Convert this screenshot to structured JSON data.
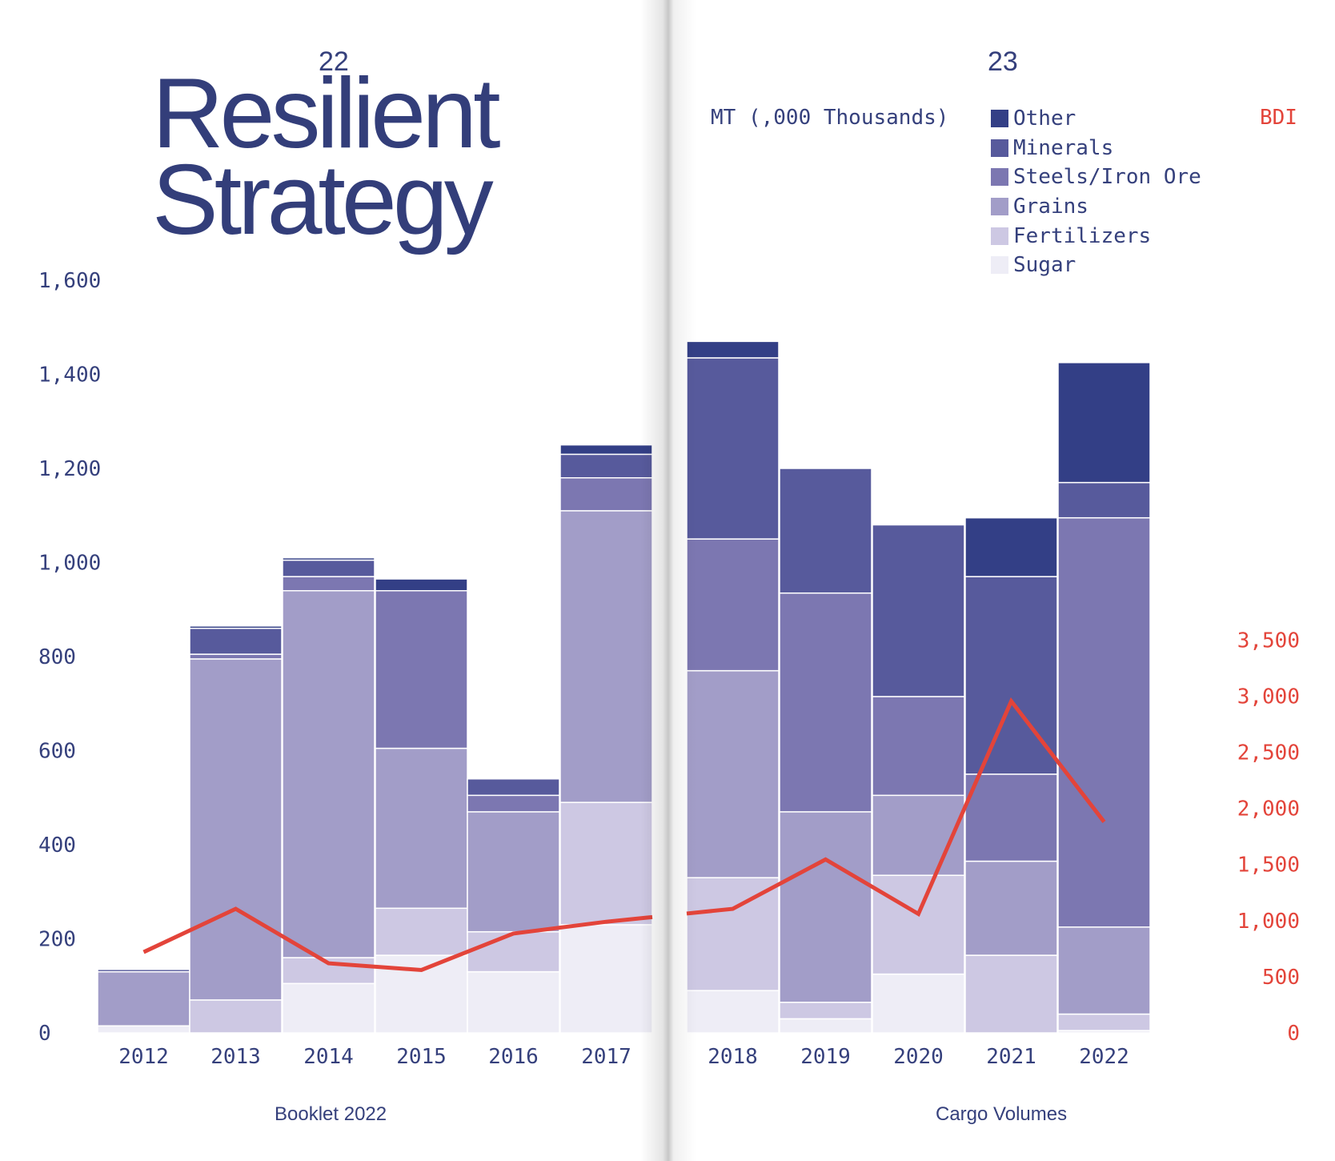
{
  "pages": {
    "left": {
      "number": "22",
      "title_line1": "Resilient",
      "title_line2": "Strategy",
      "footer": "Booklet 2022"
    },
    "right": {
      "number": "23",
      "footer": "Cargo Volumes"
    }
  },
  "colors": {
    "Sugar": "#eeedf6",
    "Fertilizers": "#cdc8e3",
    "Grains": "#a29dc8",
    "Steels/Iron Ore": "#7c77b1",
    "Minerals": "#575a9c",
    "Other": "#333f86",
    "bdi_line": "#e3443a",
    "axis_text": "#35407c"
  },
  "chart_data": {
    "type": "bar",
    "stacked": true,
    "unit_label": "MT (,000 Thousands)",
    "categories": [
      "2012",
      "2013",
      "2014",
      "2015",
      "2016",
      "2017",
      "2018",
      "2019",
      "2020",
      "2021",
      "2022"
    ],
    "series": [
      {
        "name": "Sugar",
        "values": [
          15,
          0,
          105,
          165,
          130,
          230,
          90,
          30,
          125,
          0,
          5
        ]
      },
      {
        "name": "Fertilizers",
        "values": [
          0,
          70,
          55,
          100,
          85,
          260,
          240,
          35,
          210,
          165,
          35
        ]
      },
      {
        "name": "Grains",
        "values": [
          115,
          725,
          780,
          340,
          255,
          620,
          440,
          405,
          170,
          200,
          185
        ]
      },
      {
        "name": "Steels/Iron Ore",
        "values": [
          0,
          10,
          30,
          335,
          35,
          70,
          280,
          465,
          210,
          185,
          870
        ]
      },
      {
        "name": "Minerals",
        "values": [
          5,
          55,
          35,
          0,
          35,
          50,
          385,
          265,
          365,
          420,
          75
        ]
      },
      {
        "name": "Other",
        "values": [
          0,
          5,
          5,
          25,
          0,
          20,
          35,
          0,
          0,
          125,
          255
        ]
      }
    ],
    "legend_order": [
      "Other",
      "Minerals",
      "Steels/Iron Ore",
      "Grains",
      "Fertilizers",
      "Sugar"
    ],
    "y_left": {
      "ticks": [
        "0",
        "200",
        "400",
        "600",
        "800",
        "1,000",
        "1,200",
        "1,400",
        "1,600"
      ]
    },
    "y_right": {
      "label": "BDI",
      "ticks": [
        "0",
        "500",
        "1,000",
        "1,500",
        "2,000",
        "2,500",
        "3,000",
        "3,500"
      ]
    },
    "bdi": {
      "name": "BDI",
      "values": [
        720,
        1105,
        620,
        560,
        885,
        990,
        1105,
        1545,
        1060,
        2955,
        1880
      ]
    },
    "bdi_spans_gap": false
  }
}
